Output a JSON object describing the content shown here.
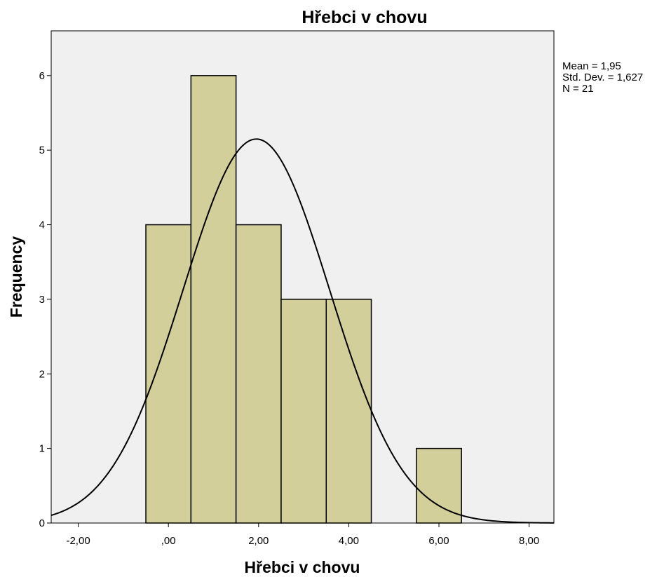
{
  "chart_data": {
    "type": "bar",
    "title": "Hřebci v chovu",
    "xlabel": "Hřebci v chovu",
    "ylabel": "Frequency",
    "xlim": [
      -2.6,
      8.55
    ],
    "ylim": [
      0,
      6.6
    ],
    "x_ticks": [
      -2,
      0,
      2,
      4,
      6,
      8
    ],
    "x_tick_labels": [
      "-2,00",
      ",00",
      "2,00",
      "4,00",
      "6,00",
      "8,00"
    ],
    "y_ticks": [
      0,
      1,
      2,
      3,
      4,
      5,
      6
    ],
    "y_tick_labels": [
      "0",
      "1",
      "2",
      "3",
      "4",
      "5",
      "6"
    ],
    "bins": [
      {
        "start": -0.5,
        "end": 0.5,
        "count": 4
      },
      {
        "start": 0.5,
        "end": 1.5,
        "count": 6
      },
      {
        "start": 1.5,
        "end": 2.5,
        "count": 4
      },
      {
        "start": 2.5,
        "end": 3.5,
        "count": 3
      },
      {
        "start": 3.5,
        "end": 4.5,
        "count": 3
      },
      {
        "start": 5.5,
        "end": 6.5,
        "count": 1
      }
    ],
    "normal_curve": {
      "mean": 1.95,
      "std": 1.627,
      "n": 21,
      "bin_width": 1
    },
    "stats_lines": [
      "Mean = 1,95",
      "Std. Dev. = 1,627",
      "N = 21"
    ],
    "grid": false,
    "colors": {
      "bar_fill": "#d3cf9b",
      "bar_stroke": "#000000",
      "plot_background": "#f0f0f0",
      "curve": "#000000"
    }
  }
}
